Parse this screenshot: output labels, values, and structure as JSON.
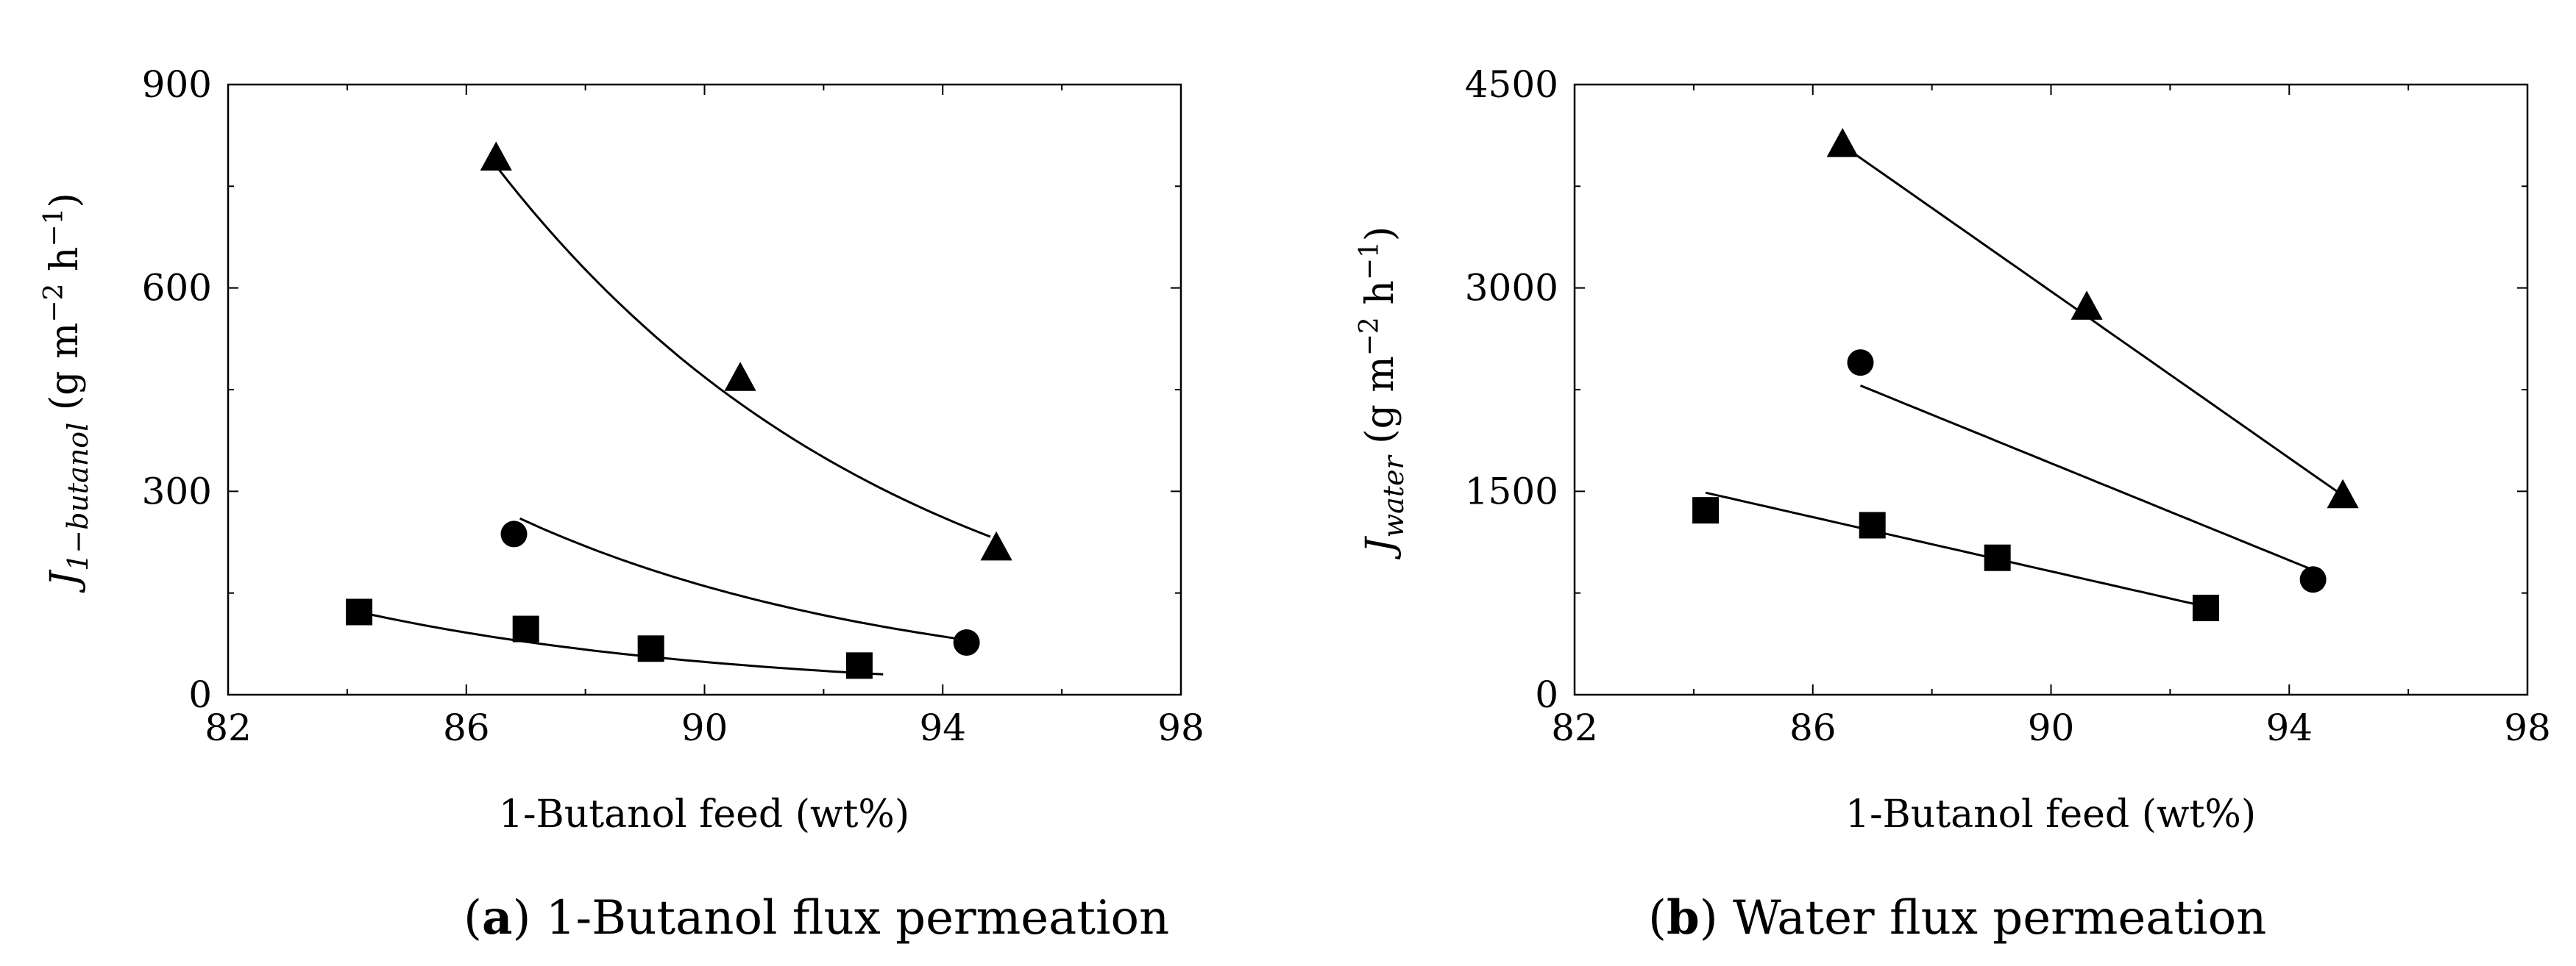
{
  "figure": {
    "captions": [
      {
        "letter": "a",
        "close": ")",
        "text": " 1-Butanol flux permeation"
      },
      {
        "letter": "b",
        "close": ")",
        "text": " Water flux permeation"
      }
    ]
  },
  "chart_data": [
    {
      "type": "scatter",
      "panel": "a",
      "title": "",
      "xlabel": "1-Butanol feed (wt%)",
      "ylabel": {
        "symbol": "J",
        "subscript": "1−butanol",
        "units_open": " (g m",
        "units_exp1": "−2",
        "units_mid": " h",
        "units_exp2": "−1",
        "units_close": ")"
      },
      "xlim": [
        82,
        98
      ],
      "ylim": [
        0,
        900
      ],
      "xticks": [
        82,
        86,
        90,
        94,
        98
      ],
      "yticks": [
        0,
        300,
        600,
        900
      ],
      "series": [
        {
          "name": "triangle",
          "marker": "triangle",
          "x": [
            86.5,
            90.6,
            94.9
          ],
          "y": [
            790,
            465,
            215
          ],
          "fit": {
            "kind": "exp",
            "x0": 86.5,
            "x1": 94.8,
            "y0": 780,
            "y1": 233
          }
        },
        {
          "name": "circle",
          "marker": "circle",
          "x": [
            86.8,
            94.4
          ],
          "y": [
            237,
            77
          ],
          "fit": {
            "kind": "exp",
            "x0": 86.9,
            "x1": 94.3,
            "y0": 260,
            "y1": 82
          }
        },
        {
          "name": "square",
          "marker": "square",
          "x": [
            84.2,
            87.0,
            89.1,
            92.6
          ],
          "y": [
            122,
            97,
            68,
            43
          ],
          "fit": {
            "kind": "exp",
            "x0": 84.2,
            "x1": 93.0,
            "y0": 122,
            "y1": 30
          }
        }
      ]
    },
    {
      "type": "scatter",
      "panel": "b",
      "title": "",
      "xlabel": "1-Butanol feed (wt%)",
      "ylabel": {
        "symbol": "J",
        "subscript": "water",
        "units_open": " (g m",
        "units_exp1": "−2",
        "units_mid": " h",
        "units_exp2": "−1",
        "units_close": ")"
      },
      "xlim": [
        82,
        98
      ],
      "ylim": [
        0,
        4500
      ],
      "xticks": [
        82,
        86,
        90,
        94,
        98
      ],
      "yticks": [
        0,
        1500,
        3000,
        4500
      ],
      "series": [
        {
          "name": "triangle",
          "marker": "triangle",
          "x": [
            86.5,
            90.6,
            94.9
          ],
          "y": [
            4050,
            2850,
            1460
          ],
          "fit": {
            "kind": "linear",
            "x0": 86.6,
            "x1": 94.8,
            "y0": 4020,
            "y1": 1500
          }
        },
        {
          "name": "circle",
          "marker": "circle",
          "x": [
            86.8,
            94.4
          ],
          "y": [
            2450,
            850
          ],
          "fit": {
            "kind": "linear",
            "x0": 86.8,
            "x1": 94.4,
            "y0": 2280,
            "y1": 920
          }
        },
        {
          "name": "square",
          "marker": "square",
          "x": [
            84.2,
            87.0,
            89.1,
            92.6
          ],
          "y": [
            1360,
            1250,
            1010,
            640
          ],
          "fit": {
            "kind": "linear",
            "x0": 84.2,
            "x1": 92.6,
            "y0": 1490,
            "y1": 650
          }
        }
      ]
    }
  ]
}
